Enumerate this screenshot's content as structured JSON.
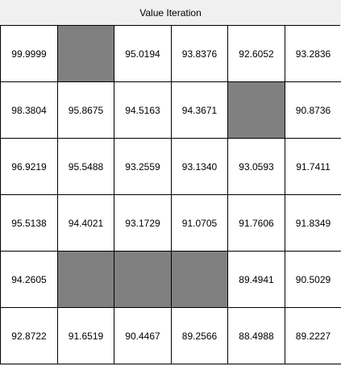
{
  "window": {
    "title": "Value Iteration"
  },
  "colors": {
    "wall": "#808080",
    "cell": "#ffffff",
    "border": "#000000"
  },
  "grid": {
    "rows": [
      [
        "99.9999",
        null,
        "95.0194",
        "93.8376",
        "92.6052",
        "93.2836"
      ],
      [
        "98.3804",
        "95.8675",
        "94.5163",
        "94.3671",
        null,
        "90.8736"
      ],
      [
        "96.9219",
        "95.5488",
        "93.2559",
        "93.1340",
        "93.0593",
        "91.7411"
      ],
      [
        "95.5138",
        "94.4021",
        "93.1729",
        "91.0705",
        "91.7606",
        "91.8349"
      ],
      [
        "94.2605",
        null,
        null,
        null,
        "89.4941",
        "90.5029"
      ],
      [
        "92.8722",
        "91.6519",
        "90.4467",
        "89.2566",
        "88.4988",
        "89.2227"
      ]
    ]
  }
}
